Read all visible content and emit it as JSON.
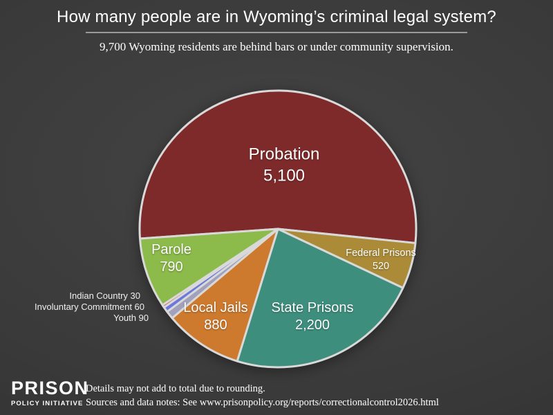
{
  "chart_data": {
    "type": "pie",
    "title": "How many people are in Wyoming’s criminal legal system?",
    "subtitle": "9,700 Wyoming residents are behind bars or under community supervision.",
    "stated_total": 9700,
    "start_angle_deg": 184,
    "direction": "clockwise",
    "stroke_color": "#d9d9d9",
    "slices": [
      {
        "label": "Probation",
        "value": 5100,
        "display": "5,100",
        "color": "#7e2a2a"
      },
      {
        "label": "Federal Prisons",
        "value": 520,
        "display": "520",
        "color": "#ab8b38"
      },
      {
        "label": "State Prisons",
        "value": 2200,
        "display": "2,200",
        "color": "#3e8e7e"
      },
      {
        "label": "Local Jails",
        "value": 880,
        "display": "880",
        "color": "#cd7a2f"
      },
      {
        "label": "Youth",
        "value": 90,
        "display": "90",
        "color": "#a2a1bc"
      },
      {
        "label": "Involuntary Commitment",
        "value": 60,
        "display": "60",
        "color": "#6c79db"
      },
      {
        "label": "Indian Country",
        "value": 30,
        "display": "30",
        "color": "#d04545"
      },
      {
        "label": "Parole",
        "value": 790,
        "display": "790",
        "color": "#8cba4b"
      }
    ],
    "outside_labels": [
      "Indian Country 30",
      "Involuntary Commitment 60",
      "Youth 90"
    ]
  },
  "footer": {
    "logo_line1": "PRISON",
    "logo_line2": "POLICY INITIATIVE",
    "note_line1": "Details may not add to total due to rounding.",
    "note_line2": "Sources and data notes: See www.prisonpolicy.org/reports/correctionalcontrol2026.html"
  }
}
